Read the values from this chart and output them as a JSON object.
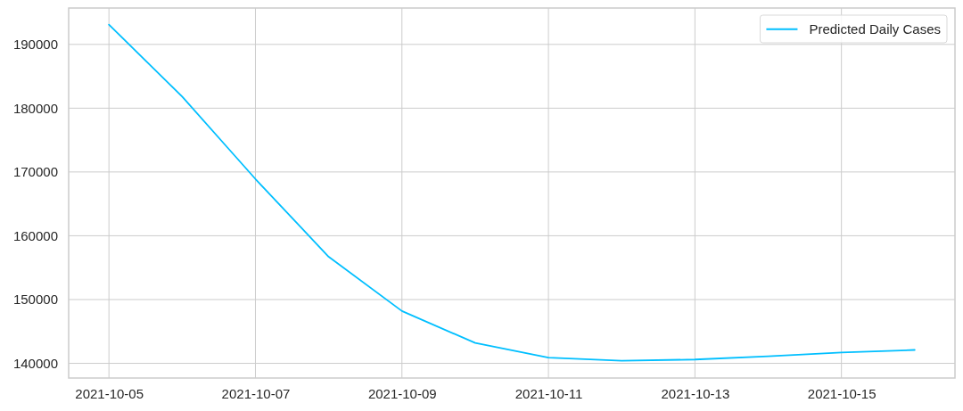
{
  "chart_data": {
    "type": "line",
    "x": [
      "2021-10-05",
      "2021-10-06",
      "2021-10-07",
      "2021-10-08",
      "2021-10-09",
      "2021-10-10",
      "2021-10-11",
      "2021-10-12",
      "2021-10-13",
      "2021-10-14",
      "2021-10-15",
      "2021-10-16"
    ],
    "series": [
      {
        "name": "Predicted Daily Cases",
        "color": "#00bfff",
        "values": [
          193100,
          181800,
          168900,
          156700,
          148200,
          143200,
          140900,
          140400,
          140600,
          141100,
          141700,
          142100
        ]
      }
    ],
    "xlim": [
      "2021-10-04T10:48",
      "2021-10-16T13:12"
    ],
    "xticks": [
      "2021-10-05",
      "2021-10-07",
      "2021-10-09",
      "2021-10-11",
      "2021-10-13",
      "2021-10-15"
    ],
    "ylim": [
      137700,
      195700
    ],
    "yticks": [
      140000,
      150000,
      160000,
      170000,
      180000,
      190000
    ],
    "grid": true,
    "legend": "top right"
  }
}
